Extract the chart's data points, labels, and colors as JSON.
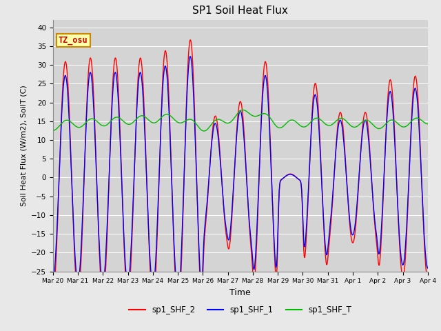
{
  "title": "SP1 Soil Heat Flux",
  "xlabel": "Time",
  "ylabel": "Soil Heat Flux (W/m2), SoilT (C)",
  "ylim": [
    -25,
    42
  ],
  "yticks": [
    -25,
    -20,
    -15,
    -10,
    -5,
    0,
    5,
    10,
    15,
    20,
    25,
    30,
    35,
    40
  ],
  "fig_bg": "#e8e8e8",
  "ax_bg": "#d4d4d4",
  "legend_labels": [
    "sp1_SHF_2",
    "sp1_SHF_1",
    "sp1_SHF_T"
  ],
  "line_colors": [
    "#ff0000",
    "#0000ff",
    "#00bb00"
  ],
  "annotation_text": "TZ_osu",
  "annotation_bg": "#ffffaa",
  "annotation_border": "#cc8800",
  "annotation_text_color": "#cc0000",
  "tick_labels": [
    "Mar 20",
    "Mar 21",
    "Mar 22",
    "Mar 23",
    "Mar 24",
    "Mar 25",
    "Mar 26",
    "Mar 27",
    "Mar 28",
    "Mar 29",
    "Mar 30",
    "Mar 31",
    "Apr 1",
    "Apr 2",
    "Apr 3",
    "Apr 4"
  ]
}
